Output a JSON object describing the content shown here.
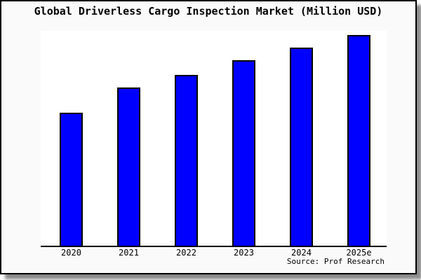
{
  "page": {
    "background": "#ffffff"
  },
  "card": {
    "background": "#fafafa",
    "border_color": "#000000"
  },
  "chart_data": {
    "type": "bar",
    "title": "Global Driverless Cargo Inspection Market (Million USD)",
    "categories": [
      "2020",
      "2021",
      "2022",
      "2023",
      "2024",
      "2025e"
    ],
    "values": [
      63,
      75,
      81,
      88,
      94,
      100
    ],
    "values_unit": "percent of tallest bar (no y-axis scale shown in image)",
    "xlabel": "",
    "ylabel": "",
    "ylim": [
      0,
      100
    ],
    "grid": false,
    "legend": false,
    "data_labels": false,
    "bar_color": "#0000ff",
    "bar_border_color": "#000000",
    "axis_color": "#000000",
    "plot_background": "#ffffff"
  },
  "source": {
    "label": "Source: Prof Research"
  }
}
